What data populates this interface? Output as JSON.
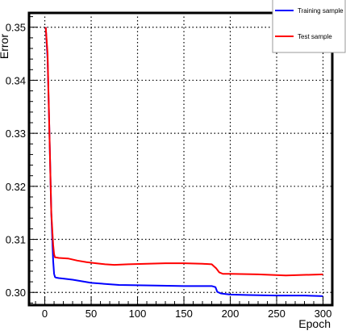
{
  "chart_data": {
    "type": "line",
    "xlabel": "Epoch",
    "ylabel": "Error",
    "xlim": [
      -17,
      310
    ],
    "ylim": [
      0.2976,
      0.3527
    ],
    "xticks": [
      0,
      50,
      100,
      150,
      200,
      250,
      300
    ],
    "xtick_labels": [
      "0",
      "50",
      "100",
      "150",
      "200",
      "250",
      "300"
    ],
    "yticks": [
      0.3,
      0.31,
      0.32,
      0.33,
      0.34,
      0.35
    ],
    "ytick_labels": [
      "0.30",
      "0.31",
      "0.32",
      "0.33",
      "0.34",
      "0.35"
    ],
    "grid": true,
    "legend_position": "top-right",
    "series": [
      {
        "name": "Training sample",
        "color": "#0000ff",
        "x": [
          1,
          3,
          5,
          7,
          9,
          10,
          11,
          12,
          15,
          20,
          30,
          50,
          80,
          120,
          150,
          180,
          184,
          186,
          190,
          195,
          200,
          220,
          250,
          280,
          300
        ],
        "y": [
          0.35,
          0.344,
          0.33,
          0.315,
          0.306,
          0.3035,
          0.3029,
          0.3028,
          0.3027,
          0.3026,
          0.3024,
          0.3018,
          0.3014,
          0.3013,
          0.3012,
          0.3012,
          0.301,
          0.3001,
          0.2998,
          0.2997,
          0.2996,
          0.2995,
          0.2994,
          0.2994,
          0.2993
        ]
      },
      {
        "name": "Test sample",
        "color": "#ff0000",
        "x": [
          1,
          3,
          5,
          7,
          9,
          10,
          11,
          12,
          15,
          25,
          35,
          45,
          55,
          65,
          75,
          90,
          110,
          130,
          150,
          170,
          180,
          185,
          188,
          192,
          200,
          230,
          260,
          280,
          300
        ],
        "y": [
          0.35,
          0.345,
          0.33,
          0.315,
          0.309,
          0.3072,
          0.3066,
          0.3066,
          0.3065,
          0.3064,
          0.306,
          0.3057,
          0.3055,
          0.3053,
          0.3052,
          0.3053,
          0.3054,
          0.3055,
          0.3055,
          0.3054,
          0.3053,
          0.3045,
          0.3038,
          0.3035,
          0.3035,
          0.3034,
          0.3032,
          0.3033,
          0.3034
        ]
      }
    ]
  }
}
